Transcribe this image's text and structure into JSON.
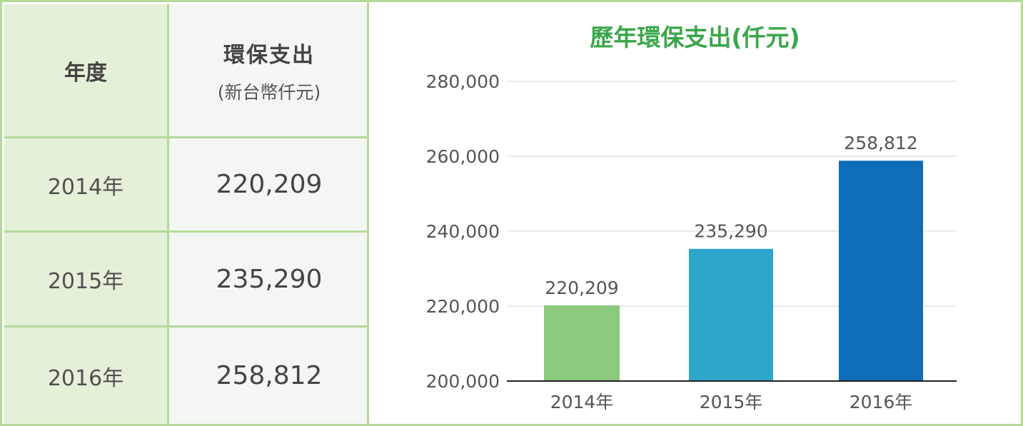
{
  "table": {
    "header": {
      "year": "年度",
      "value_title": "環保支出",
      "value_subtitle": "(新台幣仟元)"
    },
    "rows": [
      {
        "year": "2014年",
        "value": "220,209"
      },
      {
        "year": "2015年",
        "value": "235,290"
      },
      {
        "year": "2016年",
        "value": "258,812"
      }
    ]
  },
  "chart_data": {
    "type": "bar",
    "title": "歷年環保支出(仟元)",
    "categories": [
      "2014年",
      "2015年",
      "2016年"
    ],
    "values": [
      220209,
      235290,
      258812
    ],
    "value_labels": [
      "220,209",
      "235,290",
      "258,812"
    ],
    "colors": [
      "#8cc97f",
      "#2ea6cb",
      "#0f6cb6"
    ],
    "ylim": [
      200000,
      280000
    ],
    "yticks": [
      200000,
      220000,
      240000,
      260000,
      280000
    ],
    "ytick_labels": [
      "200,000",
      "220,000",
      "240,000",
      "260,000",
      "280,000"
    ],
    "xlabel": "",
    "ylabel": "",
    "grid": true,
    "legend": "none"
  }
}
